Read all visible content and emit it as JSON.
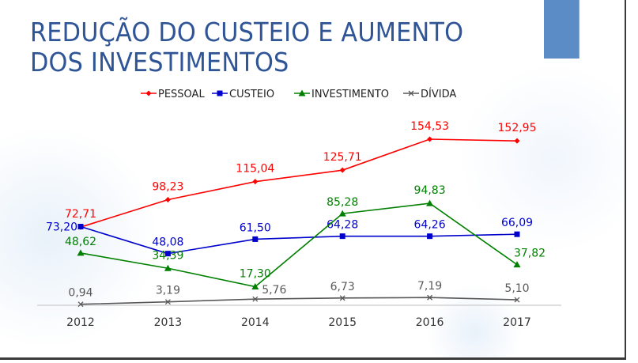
{
  "slide": {
    "title_line1": "REDUÇÃO DO CUSTEIO E AUMENTO",
    "title_line2": "DOS INVESTIMENTOS"
  },
  "chart_data": {
    "type": "line",
    "categories": [
      "2012",
      "2013",
      "2014",
      "2015",
      "2016",
      "2017"
    ],
    "series": [
      {
        "name": "PESSOAL",
        "color": "#ff0000",
        "marker": "diamond",
        "values": [
          72.71,
          98.23,
          115.04,
          125.71,
          154.53,
          152.95
        ],
        "labels": [
          "72,71",
          "98,23",
          "115,04",
          "125,71",
          "154,53",
          "152,95"
        ]
      },
      {
        "name": "CUSTEIO",
        "color": "#0000cc",
        "marker": "square",
        "values": [
          73.2,
          48.08,
          61.5,
          64.28,
          64.26,
          66.09
        ],
        "labels": [
          "73,20",
          "48,08",
          "61,50",
          "64,28",
          "64,26",
          "66,09"
        ]
      },
      {
        "name": "INVESTIMENTO",
        "color": "#008000",
        "marker": "triangle",
        "values": [
          48.62,
          34.39,
          17.3,
          85.28,
          94.83,
          37.82
        ],
        "labels": [
          "48,62",
          "34,39",
          "17,30",
          "85,28",
          "94,83",
          "37,82"
        ]
      },
      {
        "name": "DÍVIDA",
        "color": "#595959",
        "marker": "x",
        "values": [
          0.94,
          3.19,
          5.76,
          6.73,
          7.19,
          5.1
        ],
        "labels": [
          "0,94",
          "3,19",
          "5,76",
          "6,73",
          "7,19",
          "5,10"
        ]
      }
    ],
    "legend_position": "top",
    "grid": false,
    "ylim": [
      0,
      170
    ]
  }
}
